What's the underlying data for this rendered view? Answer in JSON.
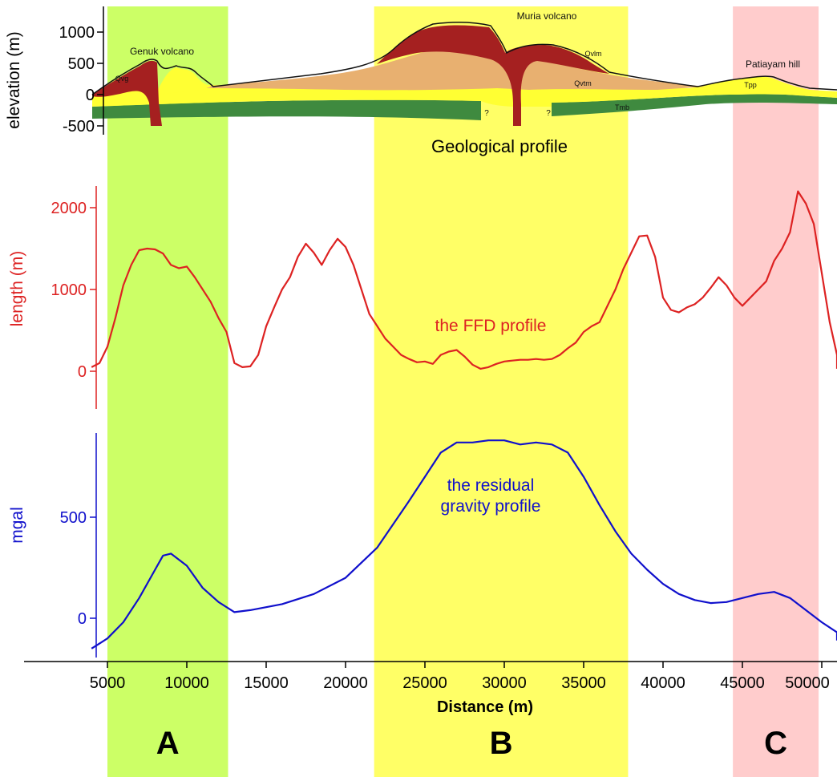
{
  "distance_axis": {
    "label": "Distance (m)",
    "range": [
      4000,
      52000
    ],
    "ticks": [
      5000,
      10000,
      15000,
      20000,
      25000,
      30000,
      35000,
      40000,
      45000,
      50000
    ],
    "tick_labels": [
      "5000",
      "10000",
      "15000",
      "20000",
      "25000",
      "30000",
      "35000",
      "40000",
      "45000",
      "50000"
    ]
  },
  "zones": [
    {
      "label": "A",
      "range": [
        5000,
        12600
      ],
      "color": "#ccff66"
    },
    {
      "label": "B",
      "range": [
        21800,
        37800
      ],
      "color": "#ffff66"
    },
    {
      "label": "C",
      "range": [
        44400,
        49800
      ],
      "color": "#ffcccc"
    }
  ],
  "geology": {
    "panel_label": "Geological profile",
    "ylabel": "elevation (m)",
    "ticks": [
      -500,
      0,
      500,
      1000
    ],
    "tick_labels": [
      "-500",
      "0",
      "500",
      "1000"
    ],
    "ylim": [
      -700,
      1500
    ],
    "colors": {
      "basement": "#3f8a3f",
      "lower_sediments": "#ffff33",
      "volcanic_tuff": "#e8b070",
      "volcanic_lava": "#a52020",
      "hill_sediments": "#ffff33"
    },
    "volcano_labels": [
      "Genuk volcano",
      "Muria volcano",
      "Patiayam hill"
    ],
    "unit_labels": [
      "Qvg",
      "Qvlm",
      "Qvtm",
      "Tpp",
      "Tmb",
      "?",
      "?"
    ]
  },
  "chart_data": [
    {
      "type": "line",
      "title": "the FFD profile",
      "xlabel": "Distance (m)",
      "ylabel": "length (m)",
      "xlim": [
        4000,
        52000
      ],
      "ylim": [
        -500,
        2300
      ],
      "yticks": [
        0,
        1000,
        2000
      ],
      "ytick_labels": [
        "0",
        "1000",
        "2000"
      ],
      "color": "#dd2222",
      "x": [
        4000,
        4500,
        5000,
        5500,
        6000,
        6500,
        7000,
        7500,
        8000,
        8500,
        9000,
        9500,
        10000,
        10500,
        11000,
        11500,
        12000,
        12500,
        13000,
        13500,
        14000,
        14500,
        15000,
        15500,
        16000,
        16500,
        17000,
        17500,
        18000,
        18500,
        19000,
        19500,
        20000,
        20500,
        21000,
        21500,
        22000,
        22500,
        23000,
        23500,
        24000,
        24500,
        25000,
        25500,
        26000,
        26500,
        27000,
        27500,
        28000,
        28500,
        29000,
        29500,
        30000,
        30500,
        31000,
        31500,
        32000,
        32500,
        33000,
        33500,
        34000,
        34500,
        35000,
        35500,
        36000,
        36500,
        37000,
        37500,
        38000,
        38500,
        39000,
        39500,
        40000,
        40500,
        41000,
        41500,
        42000,
        42500,
        43000,
        43500,
        44000,
        44500,
        45000,
        45500,
        46000,
        46500,
        47000,
        47500,
        48000,
        48500,
        49000,
        49500,
        50000,
        50500,
        51000,
        51500,
        52000
      ],
      "values": [
        50,
        100,
        300,
        650,
        1050,
        1300,
        1480,
        1500,
        1490,
        1440,
        1300,
        1260,
        1280,
        1150,
        1000,
        850,
        650,
        480,
        100,
        50,
        60,
        200,
        550,
        780,
        1000,
        1150,
        1400,
        1560,
        1450,
        1300,
        1480,
        1620,
        1520,
        1300,
        1000,
        700,
        550,
        400,
        300,
        200,
        150,
        110,
        120,
        90,
        200,
        240,
        260,
        180,
        80,
        30,
        50,
        90,
        120,
        130,
        140,
        140,
        150,
        140,
        150,
        200,
        280,
        350,
        480,
        550,
        600,
        800,
        1000,
        1250,
        1450,
        1650,
        1660,
        1400,
        900,
        750,
        720,
        780,
        820,
        900,
        1020,
        1150,
        1050,
        900,
        800,
        900,
        1000,
        1100,
        1350,
        1500,
        1700,
        2200,
        2050,
        1800,
        1200,
        600,
        200,
        50,
        30
      ]
    },
    {
      "type": "line",
      "title": "the residual gravity profile",
      "xlabel": "Distance (m)",
      "ylabel": "mgal",
      "xlim": [
        4000,
        52000
      ],
      "ylim": [
        -200,
        950
      ],
      "yticks": [
        0,
        500
      ],
      "ytick_labels": [
        "0",
        "500"
      ],
      "color": "#1010cc",
      "x": [
        4000,
        5000,
        6000,
        7000,
        8000,
        8500,
        9000,
        10000,
        11000,
        12000,
        13000,
        14000,
        16000,
        18000,
        20000,
        22000,
        24000,
        25000,
        26000,
        27000,
        28000,
        29000,
        30000,
        31000,
        32000,
        33000,
        34000,
        35000,
        36000,
        37000,
        38000,
        39000,
        40000,
        41000,
        42000,
        43000,
        44000,
        45000,
        46000,
        47000,
        48000,
        49000,
        50000,
        51000,
        52000
      ],
      "values": [
        -150,
        -100,
        -20,
        100,
        240,
        310,
        320,
        260,
        150,
        80,
        30,
        40,
        70,
        120,
        200,
        350,
        580,
        700,
        820,
        870,
        870,
        880,
        880,
        860,
        870,
        860,
        820,
        700,
        560,
        430,
        320,
        240,
        170,
        120,
        90,
        75,
        80,
        100,
        120,
        130,
        100,
        40,
        -20,
        -70,
        -110
      ]
    }
  ]
}
